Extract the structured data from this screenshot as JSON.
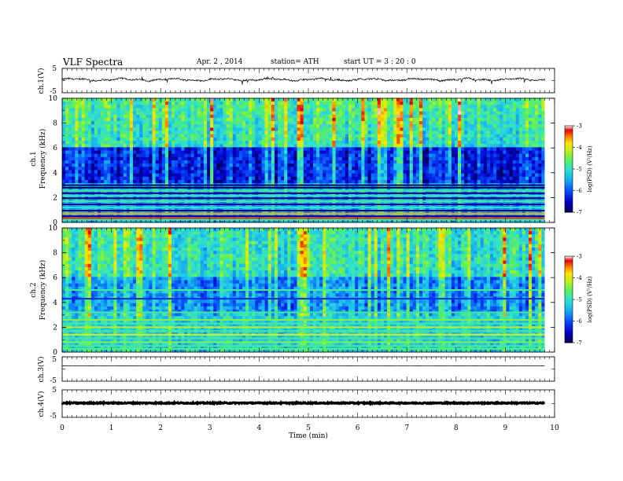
{
  "header": {
    "title": "VLF  Spectra",
    "date": "Apr. 2  , 2014",
    "station": "station= ATH",
    "start": "start  UT  =   3  : 20 : 0"
  },
  "chart_data": [
    {
      "id": "ch1-waveform",
      "type": "line",
      "ylabel": "ch.1(V)",
      "ylim": [
        -5,
        5
      ],
      "yticks": [
        "5",
        "-5"
      ],
      "xlim": [
        0,
        10
      ],
      "data_end_min": 9.8,
      "level_v": 0.4,
      "noise_v": 0.35,
      "color": "#000000"
    },
    {
      "id": "ch1-spectrogram",
      "type": "heatmap",
      "ylabel": "ch.1\nFrequency  (kHz)",
      "ylim": [
        0,
        10
      ],
      "yticks": [
        "0",
        "2",
        "4",
        "6",
        "8",
        "10"
      ],
      "xlim": [
        0,
        10
      ],
      "data_end_min": 9.8,
      "colorbar": {
        "label": "log(PSD) (V²/Hz)",
        "range": [
          -7,
          -3
        ],
        "ticks": [
          "-3",
          "-4",
          "-5",
          "-6",
          "-7"
        ]
      }
    },
    {
      "id": "ch2-spectrogram",
      "type": "heatmap",
      "ylabel": "ch.2\nFrequency  (kHz)",
      "ylim": [
        0,
        10
      ],
      "yticks": [
        "0",
        "2",
        "4",
        "6",
        "8",
        "10"
      ],
      "xlim": [
        0,
        10
      ],
      "data_end_min": 9.8,
      "colorbar": {
        "label": "log(PSD) (V²/Hz)",
        "range": [
          -7,
          -3
        ],
        "ticks": [
          "-3",
          "-4",
          "-5",
          "-6",
          "-7"
        ]
      }
    },
    {
      "id": "ch3-waveform",
      "type": "line",
      "ylabel": "ch.3(V)",
      "ylim": [
        -5,
        5
      ],
      "yticks": [
        "5",
        "-5"
      ],
      "xlim": [
        0,
        10
      ],
      "data_end_min": 9.8,
      "level_v": 1.3,
      "noise_v": 0.05,
      "color": "#000000"
    },
    {
      "id": "ch4-waveform",
      "type": "line",
      "ylabel": "ch.4(V)",
      "ylim": [
        -5,
        5
      ],
      "yticks": [
        "5",
        "-5"
      ],
      "xlim": [
        0,
        10
      ],
      "data_end_min": 9.8,
      "level_v": 0.2,
      "noise_v": 0.2,
      "color": "#000000"
    }
  ],
  "x_axis": {
    "label": "Time  (min)",
    "ticks": [
      "0",
      "1",
      "2",
      "3",
      "4",
      "5",
      "6",
      "7",
      "8",
      "9",
      "10"
    ]
  },
  "colors": {
    "colormap": [
      "#000040",
      "#0000c8",
      "#0a5aff",
      "#1ab8f0",
      "#3ce0d2",
      "#5ef060",
      "#b8f020",
      "#ffe800",
      "#ff7a00",
      "#e00000",
      "#ffffff"
    ]
  }
}
